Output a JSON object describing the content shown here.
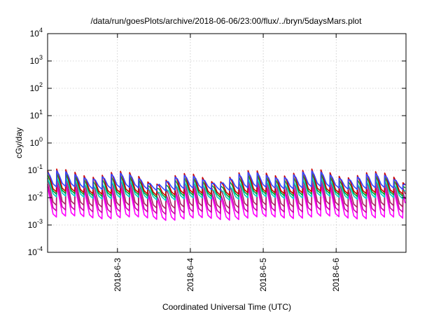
{
  "chart_data": {
    "type": "line",
    "title": "/data/run/goesPlots/archive/2018-06-06/23:00/flux/../bryn/5daysMars.plot",
    "xlabel": "Coordinated Universal Time (UTC)",
    "ylabel": "cGy/day",
    "yscale": "log",
    "ylim": [
      0.0001,
      10000
    ],
    "xlim_days": [
      "2018-06-02T01:00",
      "2018-06-06T23:00"
    ],
    "grid": true,
    "legend": "none",
    "y_ticks": [
      {
        "base": "10",
        "exp": "-4",
        "value": 0.0001
      },
      {
        "base": "10",
        "exp": "-3",
        "value": 0.001
      },
      {
        "base": "10",
        "exp": "-2",
        "value": 0.01
      },
      {
        "base": "10",
        "exp": "-1",
        "value": 0.1
      },
      {
        "base": "10",
        "exp": "0",
        "value": 1
      },
      {
        "base": "10",
        "exp": "1",
        "value": 10
      },
      {
        "base": "10",
        "exp": "2",
        "value": 100
      },
      {
        "base": "10",
        "exp": "3",
        "value": 1000
      },
      {
        "base": "10",
        "exp": "4",
        "value": 10000
      }
    ],
    "x_ticks": [
      {
        "label": "2018-6-3",
        "date": "2018-06-03T00:00"
      },
      {
        "label": "2018-6-4",
        "date": "2018-06-04T00:00"
      },
      {
        "label": "2018-6-5",
        "date": "2018-06-05T00:00"
      },
      {
        "label": "2018-6-6",
        "date": "2018-06-06T00:00"
      }
    ],
    "pattern": {
      "period_hours": 3,
      "shape": "sawtooth"
    },
    "series": [
      {
        "color": "#ff00ff",
        "peak": 0.02,
        "trough": 0.0015
      },
      {
        "color": "#cc00aa",
        "peak": 0.025,
        "trough": 0.0025
      },
      {
        "color": "#aa2266",
        "peak": 0.04,
        "trough": 0.004
      },
      {
        "color": "#00d0c8",
        "peak": 0.035,
        "trough": 0.008
      },
      {
        "color": "#00a030",
        "peak": 0.05,
        "trough": 0.01
      },
      {
        "color": "#cc0000",
        "peak": 0.07,
        "trough": 0.012
      },
      {
        "color": "#3344ff",
        "peak": 0.06,
        "trough": 0.018
      }
    ]
  }
}
